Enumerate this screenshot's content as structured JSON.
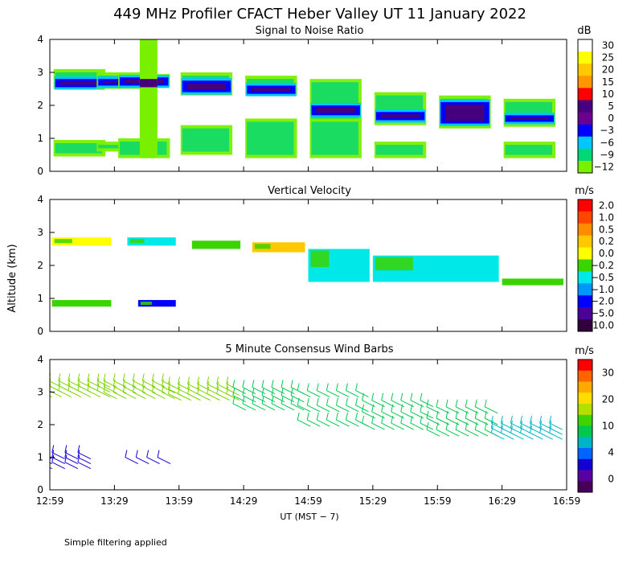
{
  "title": "449 MHz Profiler CFACT Heber Valley UT 11 January 2022",
  "ylabel": "Altitude (km)",
  "xlabel": "UT  (MST − 7)",
  "footnote": "Simple filtering applied",
  "x_ticks": [
    "12:59",
    "13:29",
    "13:59",
    "14:29",
    "14:59",
    "15:29",
    "15:59",
    "16:29",
    "16:59"
  ],
  "y_ticks": [
    "0",
    "1",
    "2",
    "3",
    "4"
  ],
  "chart_data": [
    {
      "type": "heatmap",
      "title": "Signal to Noise Ratio",
      "units": "dB",
      "xlim": [
        "12:59",
        "16:59"
      ],
      "ylim": [
        0,
        4
      ],
      "colorbar": {
        "labels": [
          "30",
          "25",
          "20",
          "15",
          "10",
          "5",
          "0",
          "−3",
          "−6",
          "−9",
          "−12"
        ],
        "colors": [
          "#ffffff",
          "#ffff00",
          "#ffc800",
          "#ff9600",
          "#ff0000",
          "#46007d",
          "#6a0090",
          "#0000ff",
          "#00c8ff",
          "#00d776",
          "#79f000"
        ]
      },
      "blocks": [
        {
          "t": "13:00",
          "x1": 5,
          "y": [
            0.45,
            0.95,
            2.5,
            3.1
          ],
          "core": [
            2.55,
            2.8
          ]
        },
        {
          "t": "13:20",
          "x1": 5,
          "y": [
            0.6,
            0.9,
            2.5,
            3.0
          ],
          "core": [
            2.6,
            2.8
          ]
        },
        {
          "t": "13:30",
          "x1": 6,
          "y": [
            0.4,
            1.0,
            2.55,
            2.95
          ],
          "core": [
            2.6,
            2.85
          ]
        },
        {
          "t": "13:59",
          "x1": 6,
          "y": [
            0.5,
            1.4,
            2.3,
            3.0
          ],
          "core": [
            2.4,
            2.75
          ]
        },
        {
          "t": "14:29",
          "x1": 6,
          "y": [
            0.4,
            1.6,
            2.3,
            2.9
          ],
          "core": [
            2.35,
            2.6
          ]
        },
        {
          "t": "14:59",
          "x1": 6,
          "y": [
            0.4,
            1.6,
            1.5,
            2.8
          ],
          "core": [
            1.7,
            2.0
          ]
        },
        {
          "t": "15:29",
          "x1": 6,
          "y": [
            0.4,
            0.9,
            1.4,
            2.4
          ],
          "core": [
            1.55,
            1.8
          ]
        },
        {
          "t": "15:59",
          "x1": 6,
          "y": [
            1.3,
            2.3
          ],
          "core": [
            1.45,
            2.1
          ]
        },
        {
          "t": "16:29",
          "x1": 5,
          "y": [
            0.4,
            0.9,
            1.35,
            2.2
          ],
          "core": [
            1.5,
            1.7
          ]
        }
      ]
    },
    {
      "type": "heatmap",
      "title": "Vertical Velocity",
      "units": "m/s",
      "xlim": [
        "12:59",
        "16:59"
      ],
      "ylim": [
        0,
        4
      ],
      "colorbar": {
        "labels": [
          "2.0",
          "1.0",
          "0.5",
          "0.2",
          "0.0",
          "−0.2",
          "−0.5",
          "−1.0",
          "−2.0",
          "−5.0",
          "−10.0"
        ],
        "colors": [
          "#ff0000",
          "#ff4600",
          "#ff8c00",
          "#ffc800",
          "#ffff00",
          "#3ad400",
          "#00e8e8",
          "#0096ff",
          "#0000ff",
          "#4b0096",
          "#32003c"
        ]
      },
      "rows": [
        {
          "from": "13:00",
          "to": "13:29",
          "alt": [
            2.6,
            2.85
          ],
          "v": "0.0"
        },
        {
          "from": "13:35",
          "to": "13:59",
          "alt": [
            2.6,
            2.85
          ],
          "v": "−0.5"
        },
        {
          "from": "14:05",
          "to": "14:29",
          "alt": [
            2.5,
            2.75
          ],
          "v": "−0.2"
        },
        {
          "from": "14:33",
          "to": "14:59",
          "alt": [
            2.4,
            2.7
          ],
          "v": "0.2"
        },
        {
          "from": "14:59",
          "to": "15:29",
          "alt": [
            1.5,
            2.5
          ],
          "v": "−0.5"
        },
        {
          "from": "15:29",
          "to": "16:29",
          "alt": [
            1.5,
            2.3
          ],
          "v": "−0.5"
        },
        {
          "from": "16:29",
          "to": "16:59",
          "alt": [
            1.4,
            1.6
          ],
          "v": "−0.2"
        },
        {
          "from": "13:00",
          "to": "13:29",
          "alt": [
            0.75,
            0.95
          ],
          "v": "−0.2"
        },
        {
          "from": "13:40",
          "to": "13:59",
          "alt": [
            0.75,
            0.95
          ],
          "v": "−2.0"
        }
      ]
    },
    {
      "type": "barbs",
      "title": "5 Minute Consensus Wind Barbs",
      "units": "m/s",
      "xlim": [
        "12:59",
        "16:59"
      ],
      "ylim": [
        0,
        4
      ],
      "colorbar": {
        "labels": [
          "30",
          "20",
          "10",
          "4",
          "0"
        ],
        "colors": [
          "#ff0000",
          "#ff6400",
          "#ffaa00",
          "#ffdc00",
          "#b4e000",
          "#3fd400",
          "#00c850",
          "#00b4c8",
          "#0064ff",
          "#1400d2",
          "#5a00a0",
          "#46005a"
        ]
      },
      "groups": [
        {
          "from": "13:00",
          "to": "13:27",
          "alt": [
            2.8,
            3.2
          ],
          "speed": 11
        },
        {
          "from": "13:30",
          "to": "13:57",
          "alt": [
            2.75,
            3.2
          ],
          "speed": 11
        },
        {
          "from": "14:00",
          "to": "14:27",
          "alt": [
            2.7,
            3.1
          ],
          "speed": 11
        },
        {
          "from": "14:30",
          "to": "14:57",
          "alt": [
            2.4,
            3.0
          ],
          "speed": 10
        },
        {
          "from": "15:00",
          "to": "15:27",
          "alt": [
            1.9,
            2.9
          ],
          "speed": 10
        },
        {
          "from": "15:30",
          "to": "15:57",
          "alt": [
            1.8,
            2.6
          ],
          "speed": 10
        },
        {
          "from": "16:00",
          "to": "16:27",
          "alt": [
            1.6,
            2.4
          ],
          "speed": 10
        },
        {
          "from": "16:30",
          "to": "16:57",
          "alt": [
            1.5,
            1.9
          ],
          "speed": 7
        },
        {
          "from": "13:00",
          "to": "13:18",
          "alt": [
            0.6,
            1.0
          ],
          "speed": 3
        },
        {
          "from": "13:40",
          "to": "13:55",
          "alt": [
            0.8,
            0.9
          ],
          "speed": 3
        }
      ]
    }
  ]
}
